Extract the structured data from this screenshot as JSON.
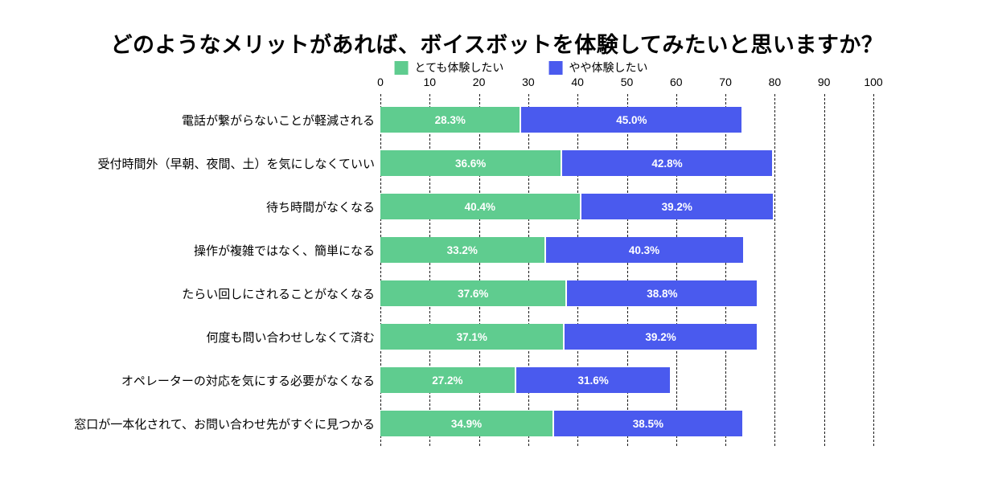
{
  "chart_data": {
    "type": "bar",
    "orientation": "horizontal",
    "stacked": true,
    "title": "どのようなメリットがあれば、ボイスボットを体験してみたいと思いますか？",
    "categories": [
      "電話が繋がらないことが軽減される",
      "受付時間外（早朝、夜間、土）を気にしなくていい",
      "待ち時間がなくなる",
      "操作が複雑ではなく、簡単になる",
      "たらい回しにされることがなくなる",
      "何度も問い合わせしなくて済む",
      "オペレーターの対応を気にする必要がなくなる",
      "窓口が一本化されて、お問い合わせ先がすぐに見つかる"
    ],
    "series": [
      {
        "name": "とても体験したい",
        "color": "#5fcc8f",
        "values": [
          28.3,
          36.6,
          40.4,
          33.2,
          37.6,
          37.1,
          27.2,
          34.9
        ]
      },
      {
        "name": "やや体験したい",
        "color": "#4a5aee",
        "values": [
          45.0,
          42.8,
          39.2,
          40.3,
          38.8,
          39.2,
          31.6,
          38.5
        ]
      }
    ],
    "value_suffix": "%",
    "value_decimals": 1,
    "xlim": [
      0,
      100
    ],
    "x_ticks": [
      0,
      10,
      20,
      30,
      40,
      50,
      60,
      70,
      80,
      90,
      100
    ],
    "grid": "dashed-vertical",
    "legend_position": "top",
    "ylabel": "",
    "xlabel": ""
  },
  "style": {
    "background": "#ffffff",
    "text_color": "#000000",
    "bar_label_color": "#ffffff",
    "gridline_color": "#1a1a1a"
  }
}
